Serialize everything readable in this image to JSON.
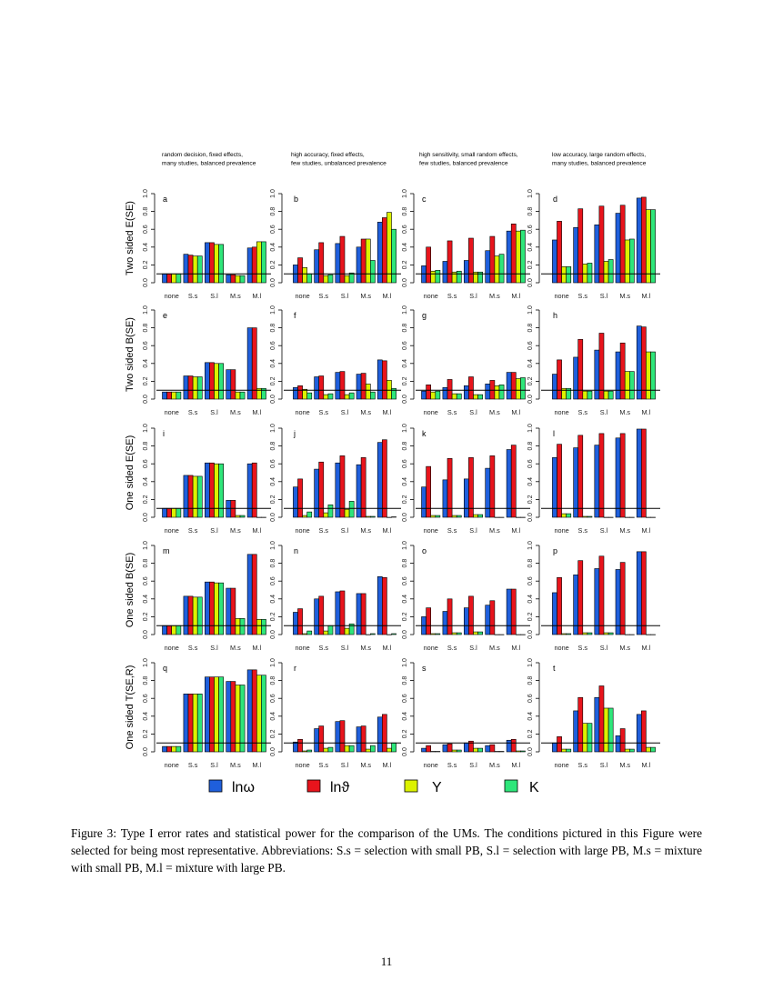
{
  "figure": {
    "column_titles": [
      [
        "random decision, fixed effects,",
        "many studies, balanced prevalence"
      ],
      [
        "high accuracy, fixed effects,",
        "few studies, unbalanced prevalence"
      ],
      [
        "high sensitivity, small random effects,",
        "few studies, balanced prevalence"
      ],
      [
        "low accuracy, large random effects,",
        "many studies, balanced prevalence"
      ]
    ],
    "row_labels": [
      "Two sided E(SE)",
      "Two sided B(SE)",
      "One sided E(SE)",
      "One sided B(SE)",
      "One sided T(SE,R)"
    ],
    "legend": [
      {
        "label": "lnω",
        "color": "#1f5fdc"
      },
      {
        "label": "lnϑ",
        "color": "#e8141c"
      },
      {
        "label": "Y",
        "color": "#dcf200"
      },
      {
        "label": "K",
        "color": "#2ee67a"
      }
    ],
    "caption": "Figure 3: Type I error rates and statistical power for the comparison of the UMs. The conditions pictured in this Figure were selected for being most representative. Abbreviations: S.s = selection with small PB, S.l = selection with large PB, M.s = mixture with small PB, M.l = mixture with large PB.",
    "page_number": "11"
  },
  "chart_data": {
    "type": "bar",
    "layout": "grid 5 rows x 4 columns",
    "categories": [
      "none",
      "S.s",
      "S.l",
      "M.s",
      "M.l"
    ],
    "series_names": [
      "lnω",
      "lnϑ",
      "Y",
      "K"
    ],
    "ylim": [
      0,
      1
    ],
    "yticks": [
      "0.0",
      "0.2",
      "0.4",
      "0.6",
      "0.8",
      "1.0"
    ],
    "reference_line": 0.1,
    "grid": false,
    "legend_placement": "bottom",
    "panels": [
      {
        "letter": "a",
        "values": [
          [
            0.1,
            0.1,
            0.1,
            0.1
          ],
          [
            0.32,
            0.31,
            0.3,
            0.3
          ],
          [
            0.45,
            0.45,
            0.43,
            0.43
          ],
          [
            0.09,
            0.09,
            0.08,
            0.08
          ],
          [
            0.39,
            0.4,
            0.46,
            0.46
          ]
        ]
      },
      {
        "letter": "b",
        "values": [
          [
            0.2,
            0.28,
            0.17,
            0.1
          ],
          [
            0.37,
            0.45,
            0.08,
            0.09
          ],
          [
            0.44,
            0.52,
            0.08,
            0.11
          ],
          [
            0.4,
            0.49,
            0.49,
            0.25
          ],
          [
            0.68,
            0.73,
            0.79,
            0.6
          ]
        ]
      },
      {
        "letter": "c",
        "values": [
          [
            0.19,
            0.4,
            0.13,
            0.14
          ],
          [
            0.24,
            0.47,
            0.12,
            0.13
          ],
          [
            0.25,
            0.5,
            0.12,
            0.12
          ],
          [
            0.36,
            0.52,
            0.3,
            0.32
          ],
          [
            0.58,
            0.66,
            0.58,
            0.59
          ]
        ]
      },
      {
        "letter": "d",
        "values": [
          [
            0.48,
            0.69,
            0.18,
            0.18
          ],
          [
            0.62,
            0.83,
            0.21,
            0.22
          ],
          [
            0.65,
            0.86,
            0.24,
            0.26
          ],
          [
            0.78,
            0.87,
            0.48,
            0.49
          ],
          [
            0.95,
            0.96,
            0.82,
            0.82
          ]
        ]
      },
      {
        "letter": "e",
        "values": [
          [
            0.08,
            0.08,
            0.08,
            0.08
          ],
          [
            0.26,
            0.26,
            0.25,
            0.25
          ],
          [
            0.41,
            0.41,
            0.4,
            0.4
          ],
          [
            0.33,
            0.33,
            0.08,
            0.08
          ],
          [
            0.8,
            0.8,
            0.12,
            0.12
          ]
        ]
      },
      {
        "letter": "f",
        "values": [
          [
            0.13,
            0.15,
            0.11,
            0.07
          ],
          [
            0.25,
            0.26,
            0.05,
            0.06
          ],
          [
            0.3,
            0.31,
            0.05,
            0.07
          ],
          [
            0.28,
            0.29,
            0.17,
            0.08
          ],
          [
            0.44,
            0.43,
            0.21,
            0.12
          ]
        ]
      },
      {
        "letter": "g",
        "values": [
          [
            0.09,
            0.16,
            0.08,
            0.09
          ],
          [
            0.13,
            0.22,
            0.06,
            0.06
          ],
          [
            0.15,
            0.25,
            0.05,
            0.05
          ],
          [
            0.17,
            0.21,
            0.15,
            0.16
          ],
          [
            0.3,
            0.3,
            0.23,
            0.24
          ]
        ]
      },
      {
        "letter": "h",
        "values": [
          [
            0.28,
            0.44,
            0.12,
            0.12
          ],
          [
            0.47,
            0.67,
            0.09,
            0.09
          ],
          [
            0.55,
            0.74,
            0.09,
            0.09
          ],
          [
            0.53,
            0.63,
            0.31,
            0.31
          ],
          [
            0.82,
            0.81,
            0.53,
            0.53
          ]
        ]
      },
      {
        "letter": "i",
        "values": [
          [
            0.1,
            0.1,
            0.1,
            0.1
          ],
          [
            0.47,
            0.47,
            0.46,
            0.46
          ],
          [
            0.61,
            0.61,
            0.6,
            0.6
          ],
          [
            0.19,
            0.19,
            0.02,
            0.02
          ],
          [
            0.6,
            0.61,
            0.0,
            0.0
          ]
        ]
      },
      {
        "letter": "j",
        "values": [
          [
            0.34,
            0.43,
            0.02,
            0.06
          ],
          [
            0.54,
            0.62,
            0.05,
            0.14
          ],
          [
            0.61,
            0.69,
            0.09,
            0.18
          ],
          [
            0.59,
            0.67,
            0.01,
            0.01
          ],
          [
            0.84,
            0.87,
            0.0,
            0.005
          ]
        ]
      },
      {
        "letter": "k",
        "values": [
          [
            0.34,
            0.57,
            0.02,
            0.02
          ],
          [
            0.42,
            0.66,
            0.02,
            0.02
          ],
          [
            0.43,
            0.67,
            0.03,
            0.03
          ],
          [
            0.55,
            0.69,
            0.0,
            0.0
          ],
          [
            0.76,
            0.81,
            0.0,
            0.0
          ]
        ]
      },
      {
        "letter": "l",
        "values": [
          [
            0.67,
            0.82,
            0.04,
            0.04
          ],
          [
            0.78,
            0.92,
            0.01,
            0.01
          ],
          [
            0.81,
            0.94,
            0.0,
            0.0
          ],
          [
            0.89,
            0.94,
            0.0,
            0.0
          ],
          [
            0.99,
            0.99,
            0.0,
            0.0
          ]
        ]
      },
      {
        "letter": "m",
        "values": [
          [
            0.1,
            0.1,
            0.1,
            0.1
          ],
          [
            0.43,
            0.43,
            0.42,
            0.42
          ],
          [
            0.59,
            0.59,
            0.58,
            0.58
          ],
          [
            0.52,
            0.52,
            0.18,
            0.18
          ],
          [
            0.9,
            0.9,
            0.17,
            0.17
          ]
        ]
      },
      {
        "letter": "n",
        "values": [
          [
            0.25,
            0.29,
            0.01,
            0.04
          ],
          [
            0.4,
            0.43,
            0.04,
            0.1
          ],
          [
            0.48,
            0.49,
            0.07,
            0.12
          ],
          [
            0.46,
            0.46,
            0.0,
            0.01
          ],
          [
            0.65,
            0.64,
            0.0,
            0.01
          ]
        ]
      },
      {
        "letter": "o",
        "values": [
          [
            0.2,
            0.3,
            0.01,
            0.01
          ],
          [
            0.26,
            0.4,
            0.02,
            0.02
          ],
          [
            0.3,
            0.43,
            0.03,
            0.03
          ],
          [
            0.33,
            0.38,
            0.0,
            0.0
          ],
          [
            0.51,
            0.51,
            0.0,
            0.0
          ]
        ]
      },
      {
        "letter": "p",
        "values": [
          [
            0.47,
            0.64,
            0.01,
            0.01
          ],
          [
            0.67,
            0.83,
            0.02,
            0.02
          ],
          [
            0.74,
            0.88,
            0.02,
            0.02
          ],
          [
            0.73,
            0.81,
            0.0,
            0.0
          ],
          [
            0.93,
            0.93,
            0.0,
            0.0
          ]
        ]
      },
      {
        "letter": "q",
        "values": [
          [
            0.06,
            0.06,
            0.06,
            0.06
          ],
          [
            0.65,
            0.65,
            0.65,
            0.65
          ],
          [
            0.84,
            0.84,
            0.84,
            0.84
          ],
          [
            0.79,
            0.79,
            0.75,
            0.75
          ],
          [
            0.92,
            0.92,
            0.86,
            0.86
          ]
        ]
      },
      {
        "letter": "r",
        "values": [
          [
            0.11,
            0.14,
            0.01,
            0.02
          ],
          [
            0.26,
            0.29,
            0.04,
            0.05
          ],
          [
            0.34,
            0.35,
            0.07,
            0.07
          ],
          [
            0.28,
            0.29,
            0.03,
            0.07
          ],
          [
            0.39,
            0.42,
            0.04,
            0.1
          ]
        ]
      },
      {
        "letter": "s",
        "values": [
          [
            0.04,
            0.07,
            0.005,
            0.005
          ],
          [
            0.08,
            0.09,
            0.02,
            0.02
          ],
          [
            0.1,
            0.12,
            0.04,
            0.04
          ],
          [
            0.07,
            0.08,
            0.005,
            0.005
          ],
          [
            0.13,
            0.14,
            0.01,
            0.01
          ]
        ]
      },
      {
        "letter": "t",
        "values": [
          [
            0.1,
            0.17,
            0.03,
            0.03
          ],
          [
            0.46,
            0.61,
            0.32,
            0.32
          ],
          [
            0.61,
            0.74,
            0.49,
            0.49
          ],
          [
            0.18,
            0.26,
            0.03,
            0.03
          ],
          [
            0.42,
            0.46,
            0.05,
            0.05
          ]
        ]
      }
    ]
  }
}
